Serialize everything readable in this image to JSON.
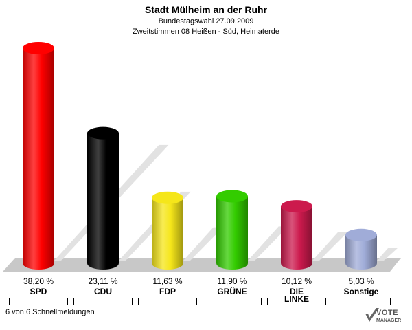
{
  "header": {
    "title": "Stadt Mülheim an der Ruhr",
    "subtitle": "Bundestagswahl 27.09.2009",
    "subtitle2": "Zweitstimmen 08 Heißen - Süd, Heimaterde"
  },
  "footer": {
    "text": "6 von 6 Schnellmeldungen"
  },
  "logo": {
    "line1": "VOTE",
    "line2": "MANAGER",
    "icon": "checkmark-icon"
  },
  "chart_data": {
    "type": "bar",
    "title": "Stadt Mülheim an der Ruhr",
    "categories": [
      "SPD",
      "CDU",
      "FDP",
      "GRÜNE",
      "DIE LINKE",
      "Sonstige"
    ],
    "category_lines": [
      [
        "SPD"
      ],
      [
        "CDU"
      ],
      [
        "FDP"
      ],
      [
        "GRÜNE"
      ],
      [
        "DIE",
        "LINKE"
      ],
      [
        "Sonstige"
      ]
    ],
    "values": [
      38.2,
      23.11,
      11.63,
      11.9,
      10.12,
      5.03
    ],
    "value_labels": [
      "38,20 %",
      "23,11 %",
      "11,63 %",
      "11,90 %",
      "10,12 %",
      "5,03 %"
    ],
    "colors": [
      "#ff0000",
      "#000000",
      "#f5e61a",
      "#33cc00",
      "#cc1a4d",
      "#a0acd8"
    ],
    "ylim": [
      0,
      40
    ],
    "grid": false,
    "legend": "none"
  }
}
